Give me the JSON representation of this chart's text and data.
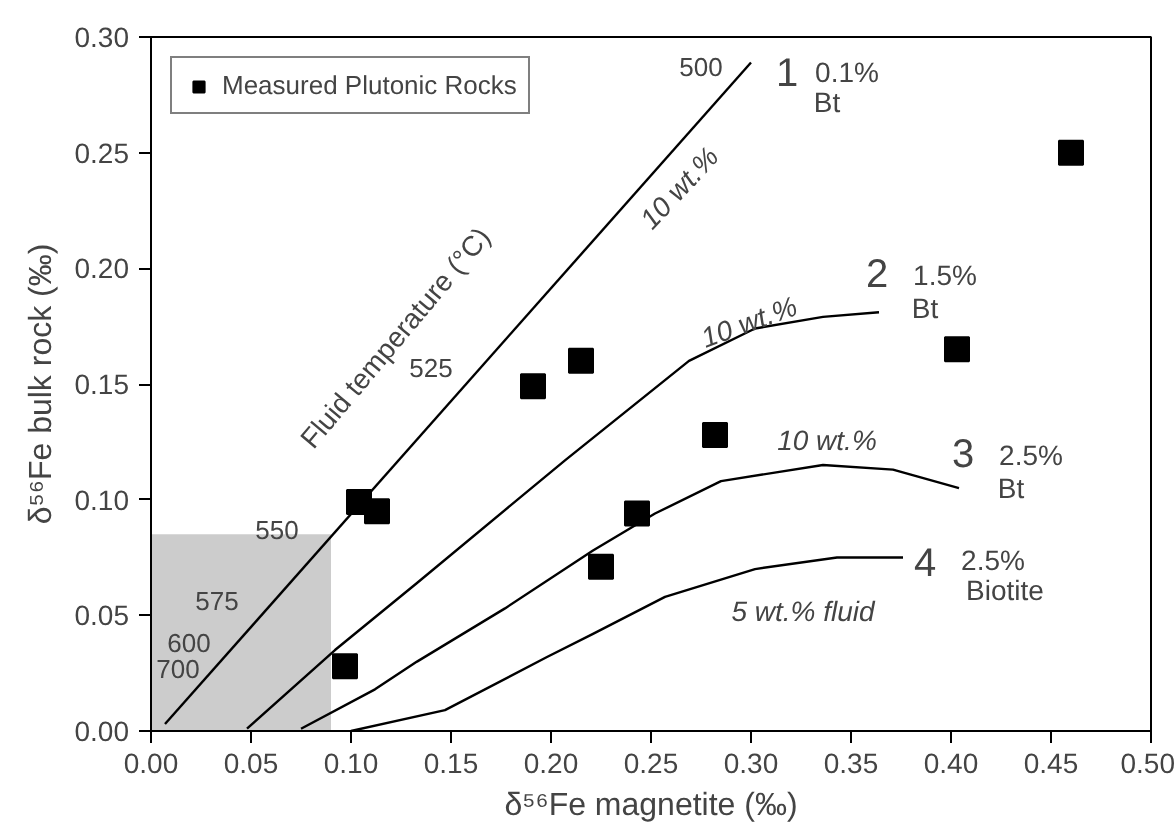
{
  "chart_data": {
    "type": "line",
    "xlabel": "δ⁵⁶Fe magnetite (‰)",
    "ylabel": "δ⁵⁶Fe bulk rock (‰)",
    "xlim": [
      0,
      0.5
    ],
    "ylim": [
      0,
      0.3
    ],
    "xticks": [
      {
        "value": 0,
        "label": "0.00"
      },
      0.05,
      {
        "value": 0.1,
        "label": "0.10"
      },
      0.15,
      {
        "value": 0.2,
        "label": "0.20"
      },
      0.25,
      {
        "value": 0.3,
        "label": "0.30"
      },
      0.35,
      {
        "value": 0.4,
        "label": "0.40"
      },
      0.45,
      {
        "value": 0.5,
        "label": "0.50"
      }
    ],
    "yticks": [
      {
        "value": 0,
        "label": "0.00"
      },
      0.05,
      {
        "value": 0.1,
        "label": "0.10"
      },
      0.15,
      {
        "value": 0.2,
        "label": "0.20"
      },
      0.25,
      {
        "value": 0.3,
        "label": "0.30"
      }
    ],
    "grid": false,
    "legend": "top left",
    "series": [
      {
        "type": "area",
        "color": "#cccccc",
        "x": [
          0,
          0.09
        ],
        "values": [
          0.085,
          0.085
        ]
      },
      {
        "color": "#000000",
        "marker": "none",
        "line_style": "solid",
        "x": [
          0.007,
          0.3
        ],
        "values": [
          0.003,
          0.289
        ]
      },
      {
        "color": "#000000",
        "marker": "none",
        "line_style": "solid",
        "x": [
          0.048,
          0.092,
          0.133,
          0.207,
          0.269,
          0.302,
          0.336,
          0.364
        ],
        "values": [
          0.001,
          0.035,
          0.064,
          0.117,
          0.16,
          0.174,
          0.179,
          0.181
        ]
      },
      {
        "color": "#000000",
        "marker": "none",
        "line_style": "solid",
        "x": [
          0.075,
          0.112,
          0.133,
          0.177,
          0.221,
          0.252,
          0.285,
          0.336,
          0.371,
          0.404
        ],
        "values": [
          0.001,
          0.018,
          0.03,
          0.053,
          0.078,
          0.094,
          0.108,
          0.115,
          0.113,
          0.105
        ]
      },
      {
        "color": "#000000",
        "marker": "none",
        "line_style": "solid",
        "x": [
          0.1,
          0.147,
          0.198,
          0.221,
          0.257,
          0.302,
          0.343,
          0.376
        ],
        "values": [
          0.0,
          0.009,
          0.032,
          0.042,
          0.058,
          0.07,
          0.075,
          0.075
        ]
      },
      {
        "type": "scatter",
        "name": "Measured Plutonic Rocks",
        "color": "#000000",
        "marker": "square",
        "x": [
          0.104,
          0.113,
          0.097,
          0.191,
          0.215,
          0.46,
          0.403,
          0.282,
          0.243,
          0.225
        ],
        "values": [
          0.099,
          0.095,
          0.028,
          0.149,
          0.16,
          0.25,
          0.165,
          0.128,
          0.094,
          0.071
        ]
      }
    ],
    "annotations": [
      "Fluid temperature (°C)",
      "500",
      "525",
      "550",
      "575",
      "600",
      "700",
      "1",
      "0.1%",
      "Bt",
      "2",
      "1.5%",
      "Bt",
      "3",
      "2.5%",
      "Bt",
      "4",
      "2.5%",
      "Biotite",
      "10 wt.%",
      "10 wt.%",
      "10 wt.%",
      "5 wt.% fluid"
    ]
  }
}
